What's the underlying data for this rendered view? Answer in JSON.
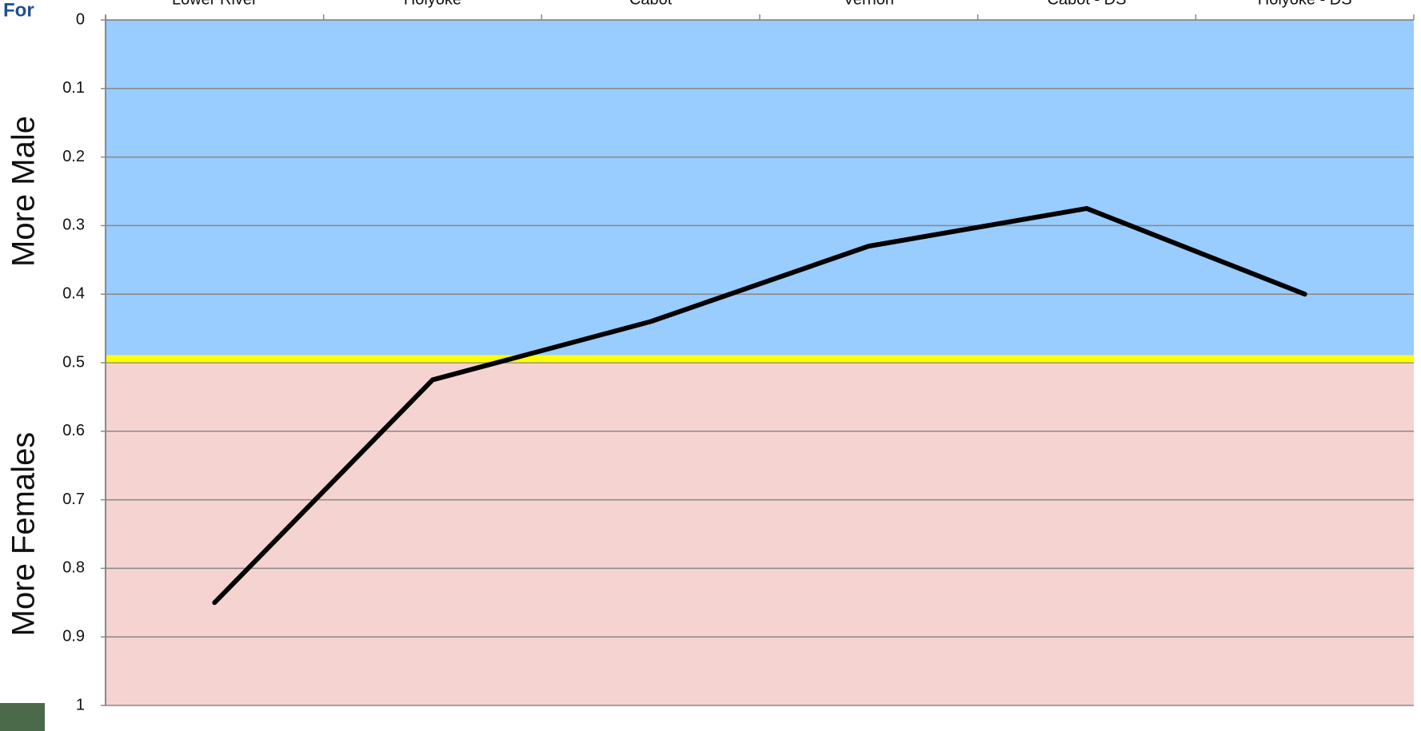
{
  "background_text": "For",
  "chart_data": {
    "type": "line",
    "categories": [
      "Lower River",
      "Holyoke",
      "Cabot",
      "Vernon",
      "Cabot - DS",
      "Holyoke - DS"
    ],
    "series": [
      {
        "color": "#000000",
        "values": [
          0.85,
          0.525,
          0.44,
          0.33,
          0.275,
          0.4
        ]
      }
    ],
    "ylim": [
      0,
      1
    ],
    "y_inverted": true,
    "yticks": [
      0,
      0.1,
      0.2,
      0.3,
      0.4,
      0.5,
      0.6,
      0.7,
      0.8,
      0.9,
      1
    ],
    "grid": true,
    "regions": [
      {
        "label": "More Male",
        "from": 0,
        "to": 0.5,
        "color": "#99ccff"
      },
      {
        "label": "More Females",
        "from": 0.5,
        "to": 1,
        "color": "#f5d3d0"
      }
    ],
    "threshold": {
      "value": 0.5,
      "color": "#ffff00"
    }
  }
}
